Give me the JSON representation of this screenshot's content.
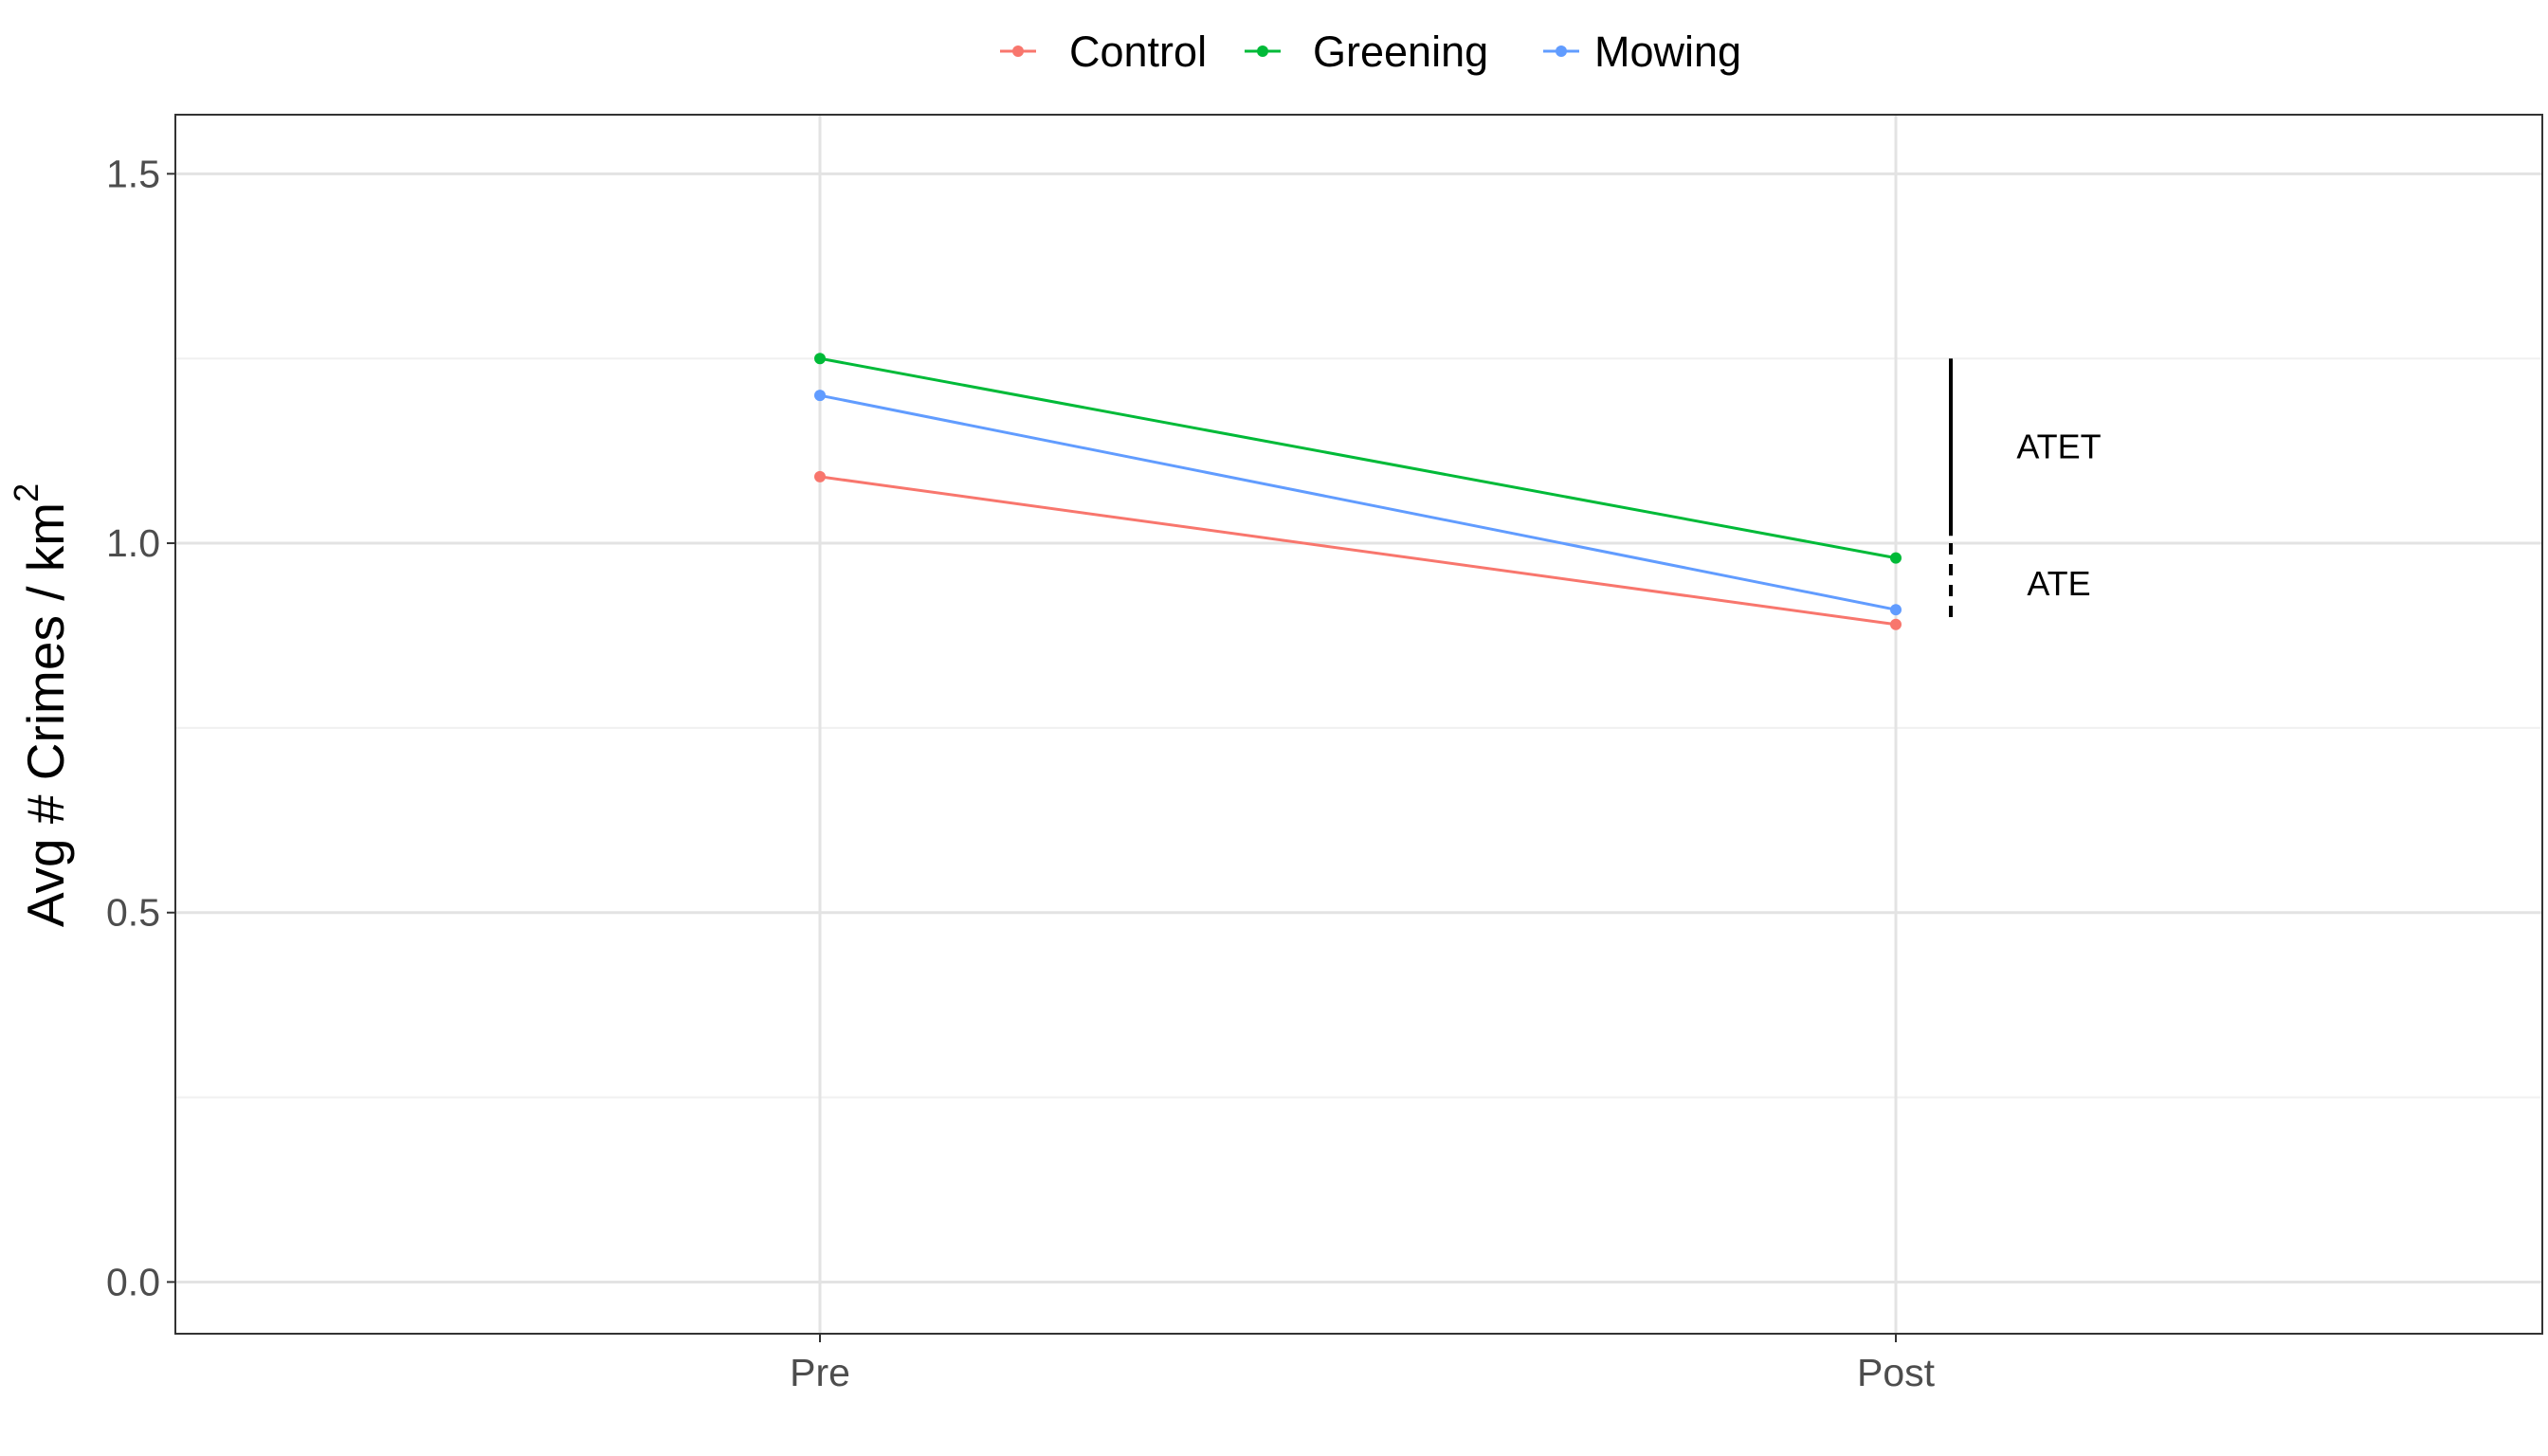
{
  "chart_data": {
    "type": "line",
    "title": "",
    "xlabel": "",
    "ylabel": "Avg # Crimes / km",
    "ylabel_superscript": "2",
    "categories": [
      "Pre",
      "Post"
    ],
    "ylim": [
      -0.07,
      1.58
    ],
    "yticks": [
      0.0,
      0.5,
      1.0,
      1.5
    ],
    "ytick_labels": [
      "0.0",
      "0.5",
      "1.0",
      "1.5"
    ],
    "grid": true,
    "legend_position": "top",
    "series": [
      {
        "name": "Control",
        "color": "#F8766D",
        "values": [
          1.09,
          0.89
        ]
      },
      {
        "name": "Greening",
        "color": "#00BA38",
        "values": [
          1.25,
          0.98
        ]
      },
      {
        "name": "Mowing",
        "color": "#619CFF",
        "values": [
          1.2,
          0.91
        ]
      }
    ],
    "annotations": [
      {
        "label": "ATET",
        "line_style": "solid",
        "y_from": 1.25,
        "y_to": 1.01
      },
      {
        "label": "ATE",
        "line_style": "dashed",
        "y_from": 1.0,
        "y_to": 0.89
      }
    ]
  }
}
